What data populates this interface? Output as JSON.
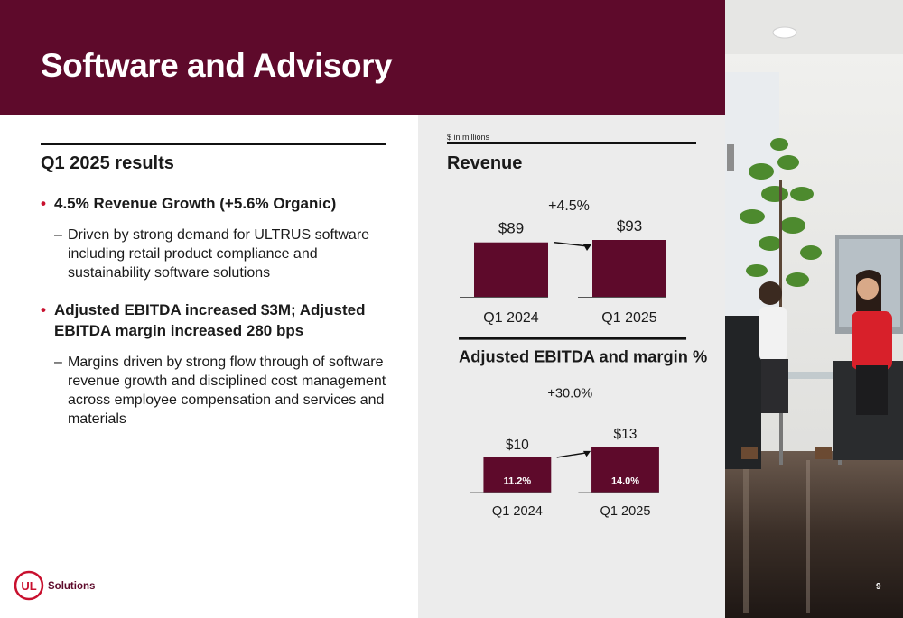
{
  "slide": {
    "title": "Software and Advisory",
    "page_number": "9",
    "brand": {
      "primary": "#5e0a2b",
      "accent": "#c8102e",
      "panel": "#ececec"
    },
    "logo_text": "Solutions",
    "logo_mark": "UL"
  },
  "results": {
    "heading": "Q1 2025 results",
    "bullets": [
      {
        "text": "4.5% Revenue Growth (+5.6% Organic)",
        "sub": "Driven by strong demand for ULTRUS software including retail product compliance and sustainability software solutions"
      },
      {
        "text": "Adjusted EBITDA increased $3M; Adjusted EBITDA margin increased 280 bps",
        "sub": "Margins driven by strong flow through of software revenue growth and disciplined cost management across employee compensation and services and materials"
      }
    ]
  },
  "unit_note": "$ in millions",
  "chart_data": [
    {
      "type": "bar",
      "title": "Revenue",
      "categories": [
        "Q1 2024",
        "Q1 2025"
      ],
      "values": [
        89,
        93
      ],
      "value_labels": [
        "$89",
        "$93"
      ],
      "growth_label": "+4.5%",
      "ylim": [
        0,
        150
      ],
      "color": "#5e0a2b"
    },
    {
      "type": "bar",
      "title": "Adjusted EBITDA and margin %",
      "categories": [
        "Q1 2024",
        "Q1 2025"
      ],
      "values": [
        10,
        13
      ],
      "value_labels": [
        "$10",
        "$13"
      ],
      "margin_labels": [
        "11.2%",
        "14.0%"
      ],
      "growth_label": "+30.0%",
      "ylim": [
        0,
        30
      ],
      "color": "#5e0a2b"
    }
  ]
}
